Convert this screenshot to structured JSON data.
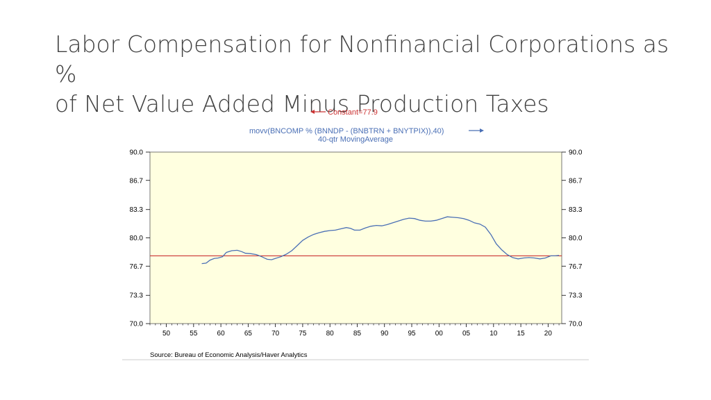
{
  "slide": {
    "title_line1": "Labor Compensation for Nonfinancial Corporations as %",
    "title_line2": "of Net Value Added Minus Production Taxes"
  },
  "chart_data": {
    "type": "line",
    "legend": {
      "constant_label": "Constant=77.9",
      "series_label_line1": "movv(BNCOMP % (BNNDP - (BNBTRN + BNYTPIX)),40)",
      "series_label_line2": "40-qtr MovingAverage"
    },
    "source": "Source:  Bureau of Economic Analysis/Haver Analytics",
    "xlim": [
      1947,
      2022.5
    ],
    "ylim": [
      70.0,
      90.0
    ],
    "x_ticks": [
      1950,
      1955,
      1960,
      1965,
      1970,
      1975,
      1980,
      1985,
      1990,
      1995,
      2000,
      2005,
      2010,
      2015,
      2020
    ],
    "x_tick_labels": [
      "50",
      "55",
      "60",
      "65",
      "70",
      "75",
      "80",
      "85",
      "90",
      "95",
      "00",
      "05",
      "10",
      "15",
      "20"
    ],
    "y_ticks": [
      90.0,
      86.7,
      83.3,
      80.0,
      76.7,
      73.3,
      70.0
    ],
    "y_tick_labels": [
      "90.0",
      "86.7",
      "83.3",
      "80.0",
      "76.7",
      "73.3",
      "70.0"
    ],
    "plot_background": "#ffffe0",
    "constant": {
      "name": "Constant",
      "value": 77.9,
      "color": "#cc3333"
    },
    "series": [
      {
        "name": "40-qtr MovingAverage",
        "color": "#4a6fb5",
        "x": [
          1956.5,
          1957.3,
          1958.0,
          1958.8,
          1959.5,
          1960.3,
          1961.0,
          1962.0,
          1963.0,
          1963.8,
          1964.5,
          1965.5,
          1966.5,
          1967.5,
          1968.5,
          1969.3,
          1970.0,
          1971.0,
          1972.0,
          1973.0,
          1974.0,
          1975.0,
          1976.0,
          1977.0,
          1978.0,
          1979.0,
          1980.0,
          1981.0,
          1982.0,
          1983.0,
          1983.8,
          1984.5,
          1985.5,
          1986.5,
          1987.5,
          1988.5,
          1989.5,
          1990.5,
          1991.5,
          1992.5,
          1993.5,
          1994.5,
          1995.5,
          1996.5,
          1997.5,
          1998.5,
          1999.5,
          2000.5,
          2001.5,
          2002.5,
          2003.5,
          2004.5,
          2005.5,
          2006.5,
          2007.5,
          2008.5,
          2009.5,
          2010.5,
          2011.5,
          2012.5,
          2013.5,
          2014.5,
          2015.5,
          2016.5,
          2017.5,
          2018.5,
          2019.5,
          2020.5,
          2021.3,
          2022.0
        ],
        "y": [
          77.0,
          77.05,
          77.4,
          77.6,
          77.65,
          77.8,
          78.3,
          78.5,
          78.55,
          78.4,
          78.2,
          78.15,
          78.05,
          77.8,
          77.5,
          77.45,
          77.6,
          77.8,
          78.1,
          78.5,
          79.1,
          79.7,
          80.1,
          80.4,
          80.6,
          80.75,
          80.85,
          80.9,
          81.05,
          81.2,
          81.1,
          80.9,
          80.9,
          81.15,
          81.35,
          81.45,
          81.4,
          81.55,
          81.75,
          81.95,
          82.15,
          82.3,
          82.25,
          82.05,
          81.95,
          81.95,
          82.05,
          82.25,
          82.45,
          82.4,
          82.35,
          82.25,
          82.05,
          81.75,
          81.6,
          81.25,
          80.4,
          79.3,
          78.6,
          78.05,
          77.7,
          77.55,
          77.65,
          77.7,
          77.65,
          77.55,
          77.65,
          77.9,
          77.9,
          77.95
        ]
      }
    ]
  }
}
